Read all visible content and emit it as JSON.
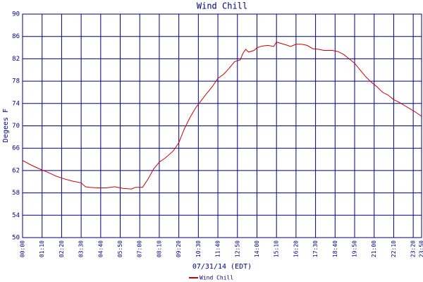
{
  "chart_data": {
    "type": "line",
    "title": "Wind Chill",
    "x_label": "07/31/14 (EDT)",
    "y_label": "Degees F",
    "xlim": [
      "00:00",
      "23:50"
    ],
    "xticks": [
      "00:00",
      "01:10",
      "02:20",
      "03:30",
      "04:40",
      "05:50",
      "07:00",
      "08:10",
      "09:20",
      "10:30",
      "11:40",
      "12:50",
      "14:00",
      "15:10",
      "16:20",
      "17:30",
      "18:40",
      "19:50",
      "21:00",
      "22:10",
      "23:20",
      "23:50"
    ],
    "ylim": [
      50,
      90
    ],
    "yticks": [
      50,
      54,
      58,
      62,
      66,
      70,
      74,
      78,
      82,
      86,
      90
    ],
    "grid": true,
    "x": [
      "00:00",
      "00:30",
      "01:00",
      "01:30",
      "02:00",
      "02:30",
      "03:00",
      "03:30",
      "03:45",
      "04:00",
      "04:30",
      "05:00",
      "05:30",
      "06:00",
      "06:30",
      "06:45",
      "07:10",
      "07:30",
      "07:50",
      "08:10",
      "08:30",
      "09:00",
      "09:20",
      "09:40",
      "10:00",
      "10:20",
      "10:40",
      "11:00",
      "11:20",
      "11:40",
      "12:00",
      "12:20",
      "12:40",
      "13:00",
      "13:10",
      "13:20",
      "13:30",
      "13:50",
      "14:00",
      "14:20",
      "14:40",
      "15:00",
      "15:10",
      "15:30",
      "15:50",
      "16:00",
      "16:20",
      "16:40",
      "17:00",
      "17:20",
      "17:40",
      "18:00",
      "18:30",
      "18:50",
      "19:10",
      "19:30",
      "19:50",
      "20:10",
      "20:30",
      "20:50",
      "21:10",
      "21:30",
      "21:50",
      "22:10",
      "22:30",
      "22:50",
      "23:10",
      "23:30",
      "23:50"
    ],
    "series": [
      {
        "name": "Wind Chill",
        "color": "#cc0000",
        "values": [
          63.8,
          63.0,
          62.3,
          61.7,
          61.0,
          60.5,
          60.1,
          59.8,
          59.1,
          59.0,
          58.9,
          58.9,
          59.1,
          58.8,
          58.7,
          59.0,
          59.0,
          60.5,
          62.3,
          63.5,
          64.2,
          65.5,
          67.0,
          69.5,
          71.5,
          73.2,
          74.5,
          75.8,
          77.0,
          78.5,
          79.2,
          80.3,
          81.5,
          81.8,
          83.0,
          83.7,
          83.2,
          83.5,
          84.0,
          84.3,
          84.4,
          84.2,
          85.0,
          84.7,
          84.4,
          84.2,
          84.6,
          84.6,
          84.4,
          83.8,
          83.7,
          83.5,
          83.5,
          83.3,
          82.8,
          82.0,
          81.2,
          80.0,
          78.8,
          77.8,
          77.0,
          76.0,
          75.5,
          74.7,
          74.2,
          73.6,
          73.0,
          72.4,
          71.7
        ]
      }
    ]
  }
}
